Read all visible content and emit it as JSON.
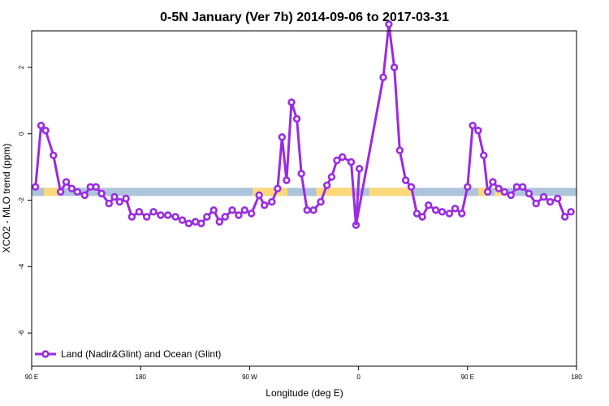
{
  "chart_data": {
    "type": "line",
    "title": "0-5N January (Ver 7b)   2014-09-06 to 2017-03-31",
    "xlabel": "Longitude (deg E)",
    "ylabel": "XCO2 - MLO trend (ppm)",
    "xlim": [
      90,
      450
    ],
    "ylim": [
      -7,
      3.1
    ],
    "x_ticks": [
      {
        "value": 90,
        "label": "90 E"
      },
      {
        "value": 162,
        "label": "180"
      },
      {
        "value": 234,
        "label": "90 W"
      },
      {
        "value": 306,
        "label": "0"
      },
      {
        "value": 378,
        "label": "90 E"
      },
      {
        "value": 450,
        "label": "180"
      }
    ],
    "y_ticks": [
      {
        "value": 2,
        "label": "2"
      },
      {
        "value": 0,
        "label": "0"
      },
      {
        "value": -2,
        "label": "-2"
      },
      {
        "value": -4,
        "label": "-4"
      },
      {
        "value": -6,
        "label": "-6"
      }
    ],
    "grid": false,
    "legend_position": "bottom-left",
    "series": [
      {
        "name": "Land (Nadir&Glint) and Ocean (Glint)",
        "color": "#9a2be2",
        "x": [
          92.5,
          96.2,
          99.2,
          104.4,
          109.1,
          112.8,
          116.5,
          120.2,
          125.0,
          128.8,
          132.5,
          136.2,
          141.1,
          144.7,
          148.1,
          152.3,
          156.2,
          161.0,
          166.0,
          170.5,
          175.3,
          180.0,
          185.0,
          189.5,
          193.8,
          198.2,
          202.0,
          205.8,
          210.3,
          214.1,
          217.8,
          222.5,
          226.8,
          230.7,
          235.2,
          240.3,
          243.8,
          248.7,
          252.5,
          255.4,
          258.4,
          261.7,
          265.2,
          268.2,
          272.0,
          276.2,
          281.0,
          285.1,
          288.2,
          291.7,
          295.3,
          301.1,
          304.3,
          322.3,
          326.0,
          329.6,
          333.2,
          337.1,
          340.8,
          344.5,
          348.1,
          352.2,
          357.0,
          361.2,
          366.0,
          369.8,
          374.2,
          378.0,
          381.4,
          385.0,
          388.7,
          391.3,
          394.7,
          398.6,
          402.4,
          406.7,
          410.5,
          414.4,
          418.6,
          423.3,
          428.3,
          432.6,
          437.5,
          442.3,
          446.3
        ],
        "values": [
          -1.6,
          0.25,
          0.1,
          -0.65,
          -1.75,
          -1.45,
          -1.65,
          -1.75,
          -1.85,
          -1.6,
          -1.6,
          -1.8,
          -2.1,
          -1.9,
          -2.05,
          -1.95,
          -2.5,
          -2.35,
          -2.5,
          -2.35,
          -2.45,
          -2.45,
          -2.5,
          -2.6,
          -2.7,
          -2.65,
          -2.7,
          -2.5,
          -2.3,
          -2.65,
          -2.5,
          -2.3,
          -2.45,
          -2.3,
          -2.4,
          -1.85,
          -2.15,
          -2.05,
          -1.65,
          -0.1,
          -1.4,
          0.95,
          0.45,
          -1.2,
          -2.3,
          -2.3,
          -2.05,
          -1.55,
          -1.3,
          -0.8,
          -0.7,
          -0.85,
          -2.75,
          1.7,
          3.3,
          2.0,
          -0.5,
          -1.4,
          -1.6,
          -2.4,
          -2.5,
          -2.15,
          -2.3,
          -2.35,
          -2.4,
          -2.25,
          -2.4,
          -1.6,
          0.25,
          0.1,
          -0.65,
          -1.75,
          -1.45,
          -1.65,
          -1.75,
          -1.85,
          -1.6,
          -1.6,
          -1.8,
          -2.1,
          -1.9,
          -2.05,
          -1.95,
          -2.5,
          -2.35
        ]
      }
    ],
    "background_band": {
      "y": -1.75,
      "band_color": "#aec3dc",
      "highlight_color": "#fed97a",
      "highlight_ranges": [
        [
          98,
          108
        ],
        [
          236,
          259
        ],
        [
          278,
          302
        ],
        [
          313,
          341
        ],
        [
          385,
          392
        ],
        [
          396,
          404
        ]
      ]
    },
    "extra_points": [
      {
        "x": 306.5,
        "y": -1.05
      }
    ]
  }
}
